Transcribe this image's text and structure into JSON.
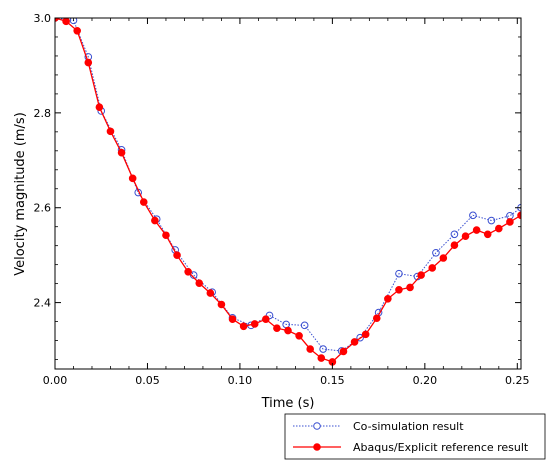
{
  "chart_data": {
    "type": "line",
    "xlabel": "Time (s)",
    "ylabel": "Velocity magnitude (m/s)",
    "xlim": [
      0,
      0.252
    ],
    "ylim": [
      2.26,
      3.0
    ],
    "x_ticks": [
      0.0,
      0.05,
      0.1,
      0.15,
      0.2,
      0.25
    ],
    "x_tick_labels": [
      "0.00",
      "0.05",
      "0.10",
      "0.15",
      "0.20",
      "0.25"
    ],
    "y_ticks": [
      2.4,
      2.6,
      2.8,
      3.0
    ],
    "y_tick_labels": [
      "2.4",
      "2.6",
      "2.8",
      "3.0"
    ],
    "grid": false,
    "legend_position": "bottom-right, outside plot",
    "series": [
      {
        "name": "Co-simulation result",
        "color": "#3a4fd0",
        "line_style": "dotted",
        "marker": "open-circle",
        "x": [
          0.0,
          0.01,
          0.018,
          0.025,
          0.036,
          0.045,
          0.055,
          0.065,
          0.075,
          0.085,
          0.096,
          0.106,
          0.116,
          0.125,
          0.135,
          0.145,
          0.155,
          0.165,
          0.175,
          0.186,
          0.196,
          0.206,
          0.216,
          0.226,
          0.236,
          0.246,
          0.252
        ],
        "y": [
          3.0,
          2.995,
          2.918,
          2.804,
          2.722,
          2.632,
          2.576,
          2.511,
          2.458,
          2.422,
          2.368,
          2.352,
          2.373,
          2.354,
          2.352,
          2.302,
          2.298,
          2.326,
          2.379,
          2.461,
          2.455,
          2.505,
          2.544,
          2.584,
          2.573,
          2.583,
          2.6
        ]
      },
      {
        "name": "Abaqus/Explicit reference result",
        "color": "#ff0000",
        "line_style": "solid",
        "marker": "filled-circle",
        "x": [
          0.0,
          0.006,
          0.012,
          0.018,
          0.024,
          0.03,
          0.036,
          0.042,
          0.048,
          0.054,
          0.06,
          0.066,
          0.072,
          0.078,
          0.084,
          0.09,
          0.096,
          0.102,
          0.108,
          0.114,
          0.12,
          0.126,
          0.132,
          0.138,
          0.144,
          0.15,
          0.156,
          0.162,
          0.168,
          0.174,
          0.18,
          0.186,
          0.192,
          0.198,
          0.204,
          0.21,
          0.216,
          0.222,
          0.228,
          0.234,
          0.24,
          0.246,
          0.252
        ],
        "y": [
          3.0,
          2.993,
          2.973,
          2.906,
          2.812,
          2.761,
          2.716,
          2.662,
          2.612,
          2.573,
          2.542,
          2.5,
          2.465,
          2.441,
          2.42,
          2.396,
          2.365,
          2.35,
          2.355,
          2.365,
          2.346,
          2.341,
          2.33,
          2.302,
          2.283,
          2.275,
          2.297,
          2.317,
          2.333,
          2.367,
          2.408,
          2.427,
          2.432,
          2.458,
          2.473,
          2.494,
          2.521,
          2.54,
          2.553,
          2.544,
          2.556,
          2.57,
          2.584
        ]
      }
    ]
  }
}
